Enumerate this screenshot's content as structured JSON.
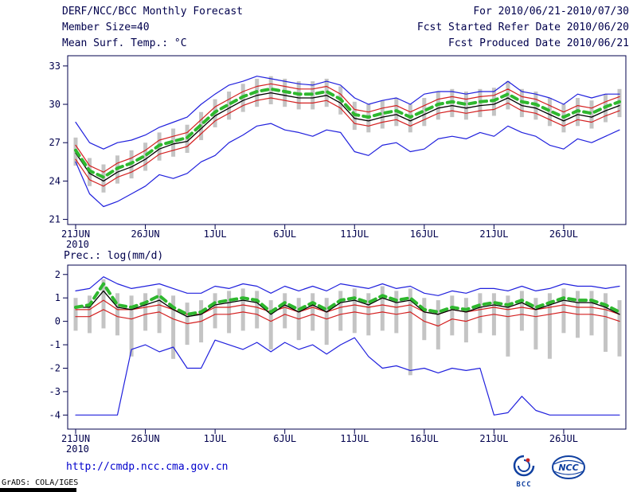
{
  "colors": {
    "axis": "#00004d",
    "text": "#00004d",
    "url": "#0000cc",
    "bar": "#c4c4c4",
    "blue": "#2020dd",
    "red": "#d42020",
    "black": "#000000",
    "green": "#2eb82e"
  },
  "header": {
    "title": "DERF/NCC/BCC Monthly Forecast",
    "member_size": "Member Size=40",
    "variable": "Mean Surf. Temp.: °C",
    "for_range": "For 2010/06/21-2010/07/30",
    "refer_date": "Fcst Started Refer Date 2010/06/20",
    "produced_date": "Fcst Produced Date 2010/06/21"
  },
  "chart_data": [
    {
      "type": "line",
      "title": "Mean Surf. Temp.: °C",
      "date_range": "2010/06/21 - 2010/07/30",
      "n_days": 40,
      "x_tick_labels": [
        "21JUN",
        "26JUN",
        "1JUL",
        "6JUL",
        "11JUL",
        "16JUL",
        "21JUL",
        "26JUL"
      ],
      "x_tick_days": [
        0,
        5,
        10,
        15,
        20,
        25,
        30,
        35
      ],
      "year_label": "2010",
      "ylim": [
        20.6,
        33.8
      ],
      "yticks": [
        21,
        24,
        27,
        30,
        33
      ],
      "grid": false,
      "legend": "none",
      "series": [
        {
          "name": "ensemble_max",
          "color": "#2020dd",
          "width": 1.2,
          "dash": "",
          "values": [
            28.6,
            27.0,
            26.5,
            27.0,
            27.2,
            27.6,
            28.2,
            28.6,
            29.0,
            30.0,
            30.8,
            31.5,
            31.8,
            32.2,
            32.0,
            31.8,
            31.6,
            31.5,
            31.8,
            31.5,
            30.5,
            30.0,
            30.3,
            30.5,
            30.0,
            30.8,
            31.0,
            31.0,
            30.8,
            31.0,
            31.0,
            31.8,
            31.0,
            30.8,
            30.5,
            30.0,
            30.8,
            30.5,
            30.8,
            30.8
          ]
        },
        {
          "name": "ensemble_min",
          "color": "#2020dd",
          "width": 1.2,
          "dash": "",
          "values": [
            25.5,
            23.0,
            22.0,
            22.4,
            23.0,
            23.6,
            24.5,
            24.2,
            24.6,
            25.5,
            26.0,
            27.0,
            27.6,
            28.3,
            28.5,
            28.0,
            27.8,
            27.5,
            28.0,
            27.8,
            26.3,
            26.0,
            26.8,
            27.0,
            26.3,
            26.5,
            27.3,
            27.5,
            27.3,
            27.8,
            27.5,
            28.3,
            27.8,
            27.5,
            26.8,
            26.5,
            27.3,
            27.0,
            27.5,
            28.0
          ]
        },
        {
          "name": "upper_red",
          "color": "#d42020",
          "width": 1.2,
          "dash": "",
          "values": [
            26.8,
            25.2,
            24.7,
            25.4,
            25.8,
            26.4,
            27.2,
            27.5,
            27.8,
            28.8,
            29.8,
            30.4,
            31.0,
            31.4,
            31.6,
            31.4,
            31.2,
            31.2,
            31.4,
            30.8,
            29.6,
            29.4,
            29.7,
            29.9,
            29.4,
            29.9,
            30.4,
            30.6,
            30.4,
            30.6,
            30.7,
            31.2,
            30.6,
            30.4,
            29.9,
            29.4,
            29.9,
            29.7,
            30.2,
            30.6
          ]
        },
        {
          "name": "lower_red",
          "color": "#d42020",
          "width": 1.2,
          "dash": "",
          "values": [
            25.7,
            24.1,
            23.6,
            24.3,
            24.7,
            25.3,
            26.1,
            26.4,
            26.7,
            27.7,
            28.7,
            29.3,
            29.9,
            30.3,
            30.5,
            30.3,
            30.1,
            30.1,
            30.3,
            29.7,
            28.5,
            28.3,
            28.6,
            28.8,
            28.3,
            28.8,
            29.3,
            29.5,
            29.3,
            29.5,
            29.6,
            30.1,
            29.5,
            29.3,
            28.8,
            28.3,
            28.8,
            28.6,
            29.1,
            29.5
          ]
        },
        {
          "name": "median_black",
          "color": "#000000",
          "width": 1.3,
          "dash": "",
          "values": [
            26.2,
            24.6,
            24.0,
            24.7,
            25.1,
            25.7,
            26.5,
            26.9,
            27.1,
            28.1,
            29.1,
            29.7,
            30.3,
            30.7,
            30.9,
            30.7,
            30.5,
            30.5,
            30.7,
            30.1,
            28.9,
            28.7,
            29.0,
            29.2,
            28.7,
            29.2,
            29.7,
            29.9,
            29.7,
            29.9,
            30.0,
            30.5,
            29.9,
            29.7,
            29.2,
            28.7,
            29.2,
            29.0,
            29.5,
            29.9
          ]
        },
        {
          "name": "ensemble_mean",
          "color": "#2eb82e",
          "width": 4,
          "dash": "8 6",
          "values": [
            26.4,
            24.8,
            24.3,
            25.0,
            25.4,
            26.0,
            26.8,
            27.1,
            27.4,
            28.4,
            29.4,
            30.0,
            30.6,
            31.0,
            31.2,
            31.0,
            30.8,
            30.8,
            31.0,
            30.4,
            29.2,
            29.0,
            29.3,
            29.5,
            29.0,
            29.5,
            30.0,
            30.2,
            30.0,
            30.2,
            30.3,
            30.8,
            30.2,
            30.0,
            29.5,
            29.0,
            29.5,
            29.3,
            29.8,
            30.2
          ]
        }
      ],
      "bars": {
        "name": "ensemble_spread",
        "color": "#c4c4c4",
        "low": [
          25.2,
          23.6,
          23.1,
          23.8,
          24.2,
          24.8,
          25.6,
          25.9,
          26.2,
          27.2,
          28.2,
          28.8,
          29.4,
          29.8,
          30.0,
          29.8,
          29.6,
          29.6,
          29.8,
          29.2,
          28.0,
          27.8,
          28.1,
          28.3,
          27.8,
          28.3,
          28.8,
          29.0,
          28.8,
          29.0,
          29.1,
          29.6,
          29.0,
          28.8,
          28.3,
          27.8,
          28.3,
          28.1,
          28.6,
          29.0
        ],
        "high": [
          27.4,
          25.8,
          25.3,
          26.0,
          26.4,
          27.0,
          27.8,
          28.1,
          28.4,
          29.4,
          30.4,
          31.0,
          31.6,
          32.0,
          32.2,
          32.0,
          31.8,
          31.8,
          32.0,
          31.4,
          30.2,
          30.0,
          30.3,
          30.5,
          30.0,
          30.5,
          31.0,
          31.2,
          31.0,
          31.2,
          31.3,
          31.8,
          31.2,
          31.0,
          30.5,
          30.0,
          30.5,
          30.3,
          30.8,
          31.2
        ]
      }
    },
    {
      "type": "line",
      "title": "Prec.: log(mm/d)",
      "date_range": "2010/06/21 - 2010/07/30",
      "n_days": 40,
      "x_tick_labels": [
        "21JUN",
        "26JUN",
        "1JUL",
        "6JUL",
        "11JUL",
        "16JUL",
        "21JUL",
        "26JUL"
      ],
      "x_tick_days": [
        0,
        5,
        10,
        15,
        20,
        25,
        30,
        35
      ],
      "year_label": "2010",
      "ylim": [
        -4.6,
        2.4
      ],
      "yticks": [
        -4,
        -3,
        -2,
        -1,
        0,
        1,
        2
      ],
      "grid": false,
      "legend": "none",
      "series": [
        {
          "name": "ensemble_max",
          "color": "#2020dd",
          "width": 1.2,
          "dash": "",
          "values": [
            1.3,
            1.4,
            1.9,
            1.6,
            1.4,
            1.5,
            1.6,
            1.4,
            1.2,
            1.2,
            1.5,
            1.4,
            1.6,
            1.5,
            1.2,
            1.5,
            1.3,
            1.5,
            1.3,
            1.6,
            1.5,
            1.4,
            1.6,
            1.4,
            1.5,
            1.2,
            1.1,
            1.3,
            1.2,
            1.4,
            1.4,
            1.3,
            1.5,
            1.3,
            1.4,
            1.6,
            1.5,
            1.5,
            1.4,
            1.5
          ]
        },
        {
          "name": "ensemble_min",
          "color": "#2020dd",
          "width": 1.2,
          "dash": "",
          "values": [
            -4.0,
            -4.0,
            -4.0,
            -4.0,
            -1.2,
            -1.0,
            -1.3,
            -1.1,
            -2.0,
            -2.0,
            -0.8,
            -1.0,
            -1.2,
            -0.9,
            -1.3,
            -0.9,
            -1.2,
            -1.0,
            -1.4,
            -1.0,
            -0.7,
            -1.5,
            -2.0,
            -1.9,
            -2.1,
            -2.0,
            -2.2,
            -2.0,
            -2.1,
            -2.0,
            -4.0,
            -3.9,
            -3.2,
            -3.8,
            -4.0,
            -4.0,
            -4.0,
            -4.0,
            -4.0,
            -4.0
          ]
        },
        {
          "name": "upper_red",
          "color": "#d42020",
          "width": 1.2,
          "dash": "",
          "values": [
            0.5,
            0.5,
            0.9,
            0.5,
            0.5,
            0.6,
            0.7,
            0.5,
            0.3,
            0.3,
            0.6,
            0.6,
            0.7,
            0.6,
            0.4,
            0.6,
            0.4,
            0.6,
            0.4,
            0.6,
            0.7,
            0.6,
            0.7,
            0.6,
            0.7,
            0.4,
            0.3,
            0.5,
            0.4,
            0.5,
            0.6,
            0.5,
            0.6,
            0.5,
            0.6,
            0.7,
            0.6,
            0.6,
            0.5,
            0.3
          ]
        },
        {
          "name": "lower_red",
          "color": "#d42020",
          "width": 1.2,
          "dash": "",
          "values": [
            0.2,
            0.2,
            0.5,
            0.2,
            0.1,
            0.3,
            0.4,
            0.1,
            -0.1,
            0.0,
            0.3,
            0.3,
            0.4,
            0.3,
            0.0,
            0.3,
            0.1,
            0.3,
            0.1,
            0.3,
            0.4,
            0.3,
            0.4,
            0.3,
            0.4,
            0.0,
            -0.2,
            0.1,
            0.0,
            0.2,
            0.3,
            0.2,
            0.3,
            0.2,
            0.3,
            0.4,
            0.3,
            0.3,
            0.2,
            0.0
          ]
        },
        {
          "name": "median_black",
          "color": "#000000",
          "width": 1.3,
          "dash": "",
          "values": [
            0.6,
            0.6,
            1.3,
            0.6,
            0.5,
            0.7,
            0.9,
            0.5,
            0.2,
            0.3,
            0.7,
            0.8,
            0.9,
            0.8,
            0.3,
            0.7,
            0.4,
            0.7,
            0.4,
            0.8,
            0.9,
            0.7,
            1.0,
            0.8,
            0.9,
            0.4,
            0.3,
            0.5,
            0.4,
            0.6,
            0.7,
            0.6,
            0.8,
            0.5,
            0.7,
            0.9,
            0.8,
            0.8,
            0.6,
            0.3
          ]
        },
        {
          "name": "ensemble_mean",
          "color": "#2eb82e",
          "width": 4,
          "dash": "8 6",
          "values": [
            0.6,
            0.7,
            1.6,
            0.7,
            0.6,
            0.8,
            1.1,
            0.6,
            0.3,
            0.4,
            0.8,
            0.9,
            1.0,
            0.9,
            0.4,
            0.8,
            0.5,
            0.8,
            0.5,
            0.9,
            1.0,
            0.8,
            1.1,
            0.9,
            1.0,
            0.5,
            0.4,
            0.6,
            0.5,
            0.7,
            0.8,
            0.7,
            0.9,
            0.6,
            0.8,
            1.0,
            0.9,
            0.9,
            0.7,
            0.4
          ]
        }
      ],
      "bars": {
        "name": "ensemble_spread",
        "color": "#c4c4c4",
        "low": [
          -0.4,
          -0.5,
          -0.3,
          -0.6,
          -1.5,
          -0.4,
          -0.5,
          -1.6,
          -1.0,
          -0.9,
          -0.3,
          -0.5,
          -0.4,
          -0.3,
          -1.2,
          -0.3,
          -0.8,
          -0.4,
          -1.0,
          -0.4,
          -0.5,
          -0.6,
          -0.4,
          -0.5,
          -2.3,
          -0.8,
          -1.2,
          -0.6,
          -0.9,
          -0.5,
          -0.6,
          -1.5,
          -0.4,
          -1.2,
          -1.6,
          -0.5,
          -0.7,
          -0.6,
          -1.3,
          -1.5
        ],
        "high": [
          1.0,
          1.1,
          1.8,
          1.2,
          1.1,
          1.2,
          1.4,
          1.1,
          0.8,
          0.9,
          1.2,
          1.3,
          1.4,
          1.3,
          0.9,
          1.2,
          1.0,
          1.2,
          1.0,
          1.3,
          1.4,
          1.2,
          1.5,
          1.3,
          1.4,
          1.0,
          0.9,
          1.1,
          1.0,
          1.2,
          1.2,
          1.1,
          1.3,
          1.0,
          1.2,
          1.4,
          1.3,
          1.3,
          1.2,
          0.9
        ]
      }
    }
  ],
  "footer": {
    "url": "http://cmdp.ncc.cma.gov.cn",
    "bcc_label": "BCC",
    "ncc_label": "NCC",
    "grads_credit": "GrADS: COLA/IGES"
  }
}
